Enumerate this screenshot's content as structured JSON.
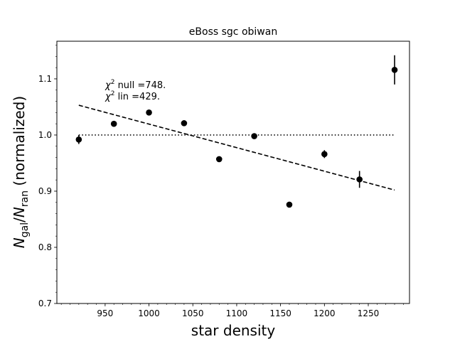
{
  "chart_data": {
    "type": "scatter",
    "title": "eBoss sgc obiwan",
    "xlabel": "star density",
    "ylabel_parts": {
      "N1": "N",
      "sub1": "gal",
      "slash": "/",
      "N2": "N",
      "sub2": "ran",
      "rest": " (normalized)"
    },
    "xlim": [
      895,
      1297
    ],
    "ylim": [
      0.7,
      1.167
    ],
    "x_ticks": [
      950,
      1000,
      1050,
      1100,
      1150,
      1200,
      1250
    ],
    "x_tick_labels": [
      "950",
      "1000",
      "1050",
      "1100",
      "1150",
      "1200",
      "1250"
    ],
    "y_ticks": [
      0.7,
      0.8,
      0.9,
      1.0,
      1.1
    ],
    "y_tick_labels": [
      "0.7",
      "0.8",
      "0.9",
      "1.0",
      "1.1"
    ],
    "x_minor_step": 10,
    "y_minor_step": 0.02,
    "points": [
      {
        "x": 920,
        "y": 0.992,
        "err": 0.008
      },
      {
        "x": 960,
        "y": 1.02,
        "err": 0.004
      },
      {
        "x": 1000,
        "y": 1.04,
        "err": 0.004
      },
      {
        "x": 1040,
        "y": 1.021,
        "err": 0.004
      },
      {
        "x": 1080,
        "y": 0.957,
        "err": 0.004
      },
      {
        "x": 1120,
        "y": 0.998,
        "err": 0.004
      },
      {
        "x": 1160,
        "y": 0.876,
        "err": 0.005
      },
      {
        "x": 1200,
        "y": 0.966,
        "err": 0.007
      },
      {
        "x": 1240,
        "y": 0.921,
        "err": 0.015
      },
      {
        "x": 1280,
        "y": 1.116,
        "err": 0.026
      }
    ],
    "null_line": {
      "y": 1.0,
      "x": [
        920,
        1280
      ],
      "style": "dotted"
    },
    "lin_fit": {
      "x": [
        920,
        1280
      ],
      "y": [
        1.053,
        0.902
      ],
      "style": "dashed"
    },
    "annotations": [
      {
        "sup": "2",
        "text": " null =748."
      },
      {
        "sup": "2",
        "text": " lin =429."
      }
    ],
    "grid": false,
    "marker_color": "#000000"
  }
}
